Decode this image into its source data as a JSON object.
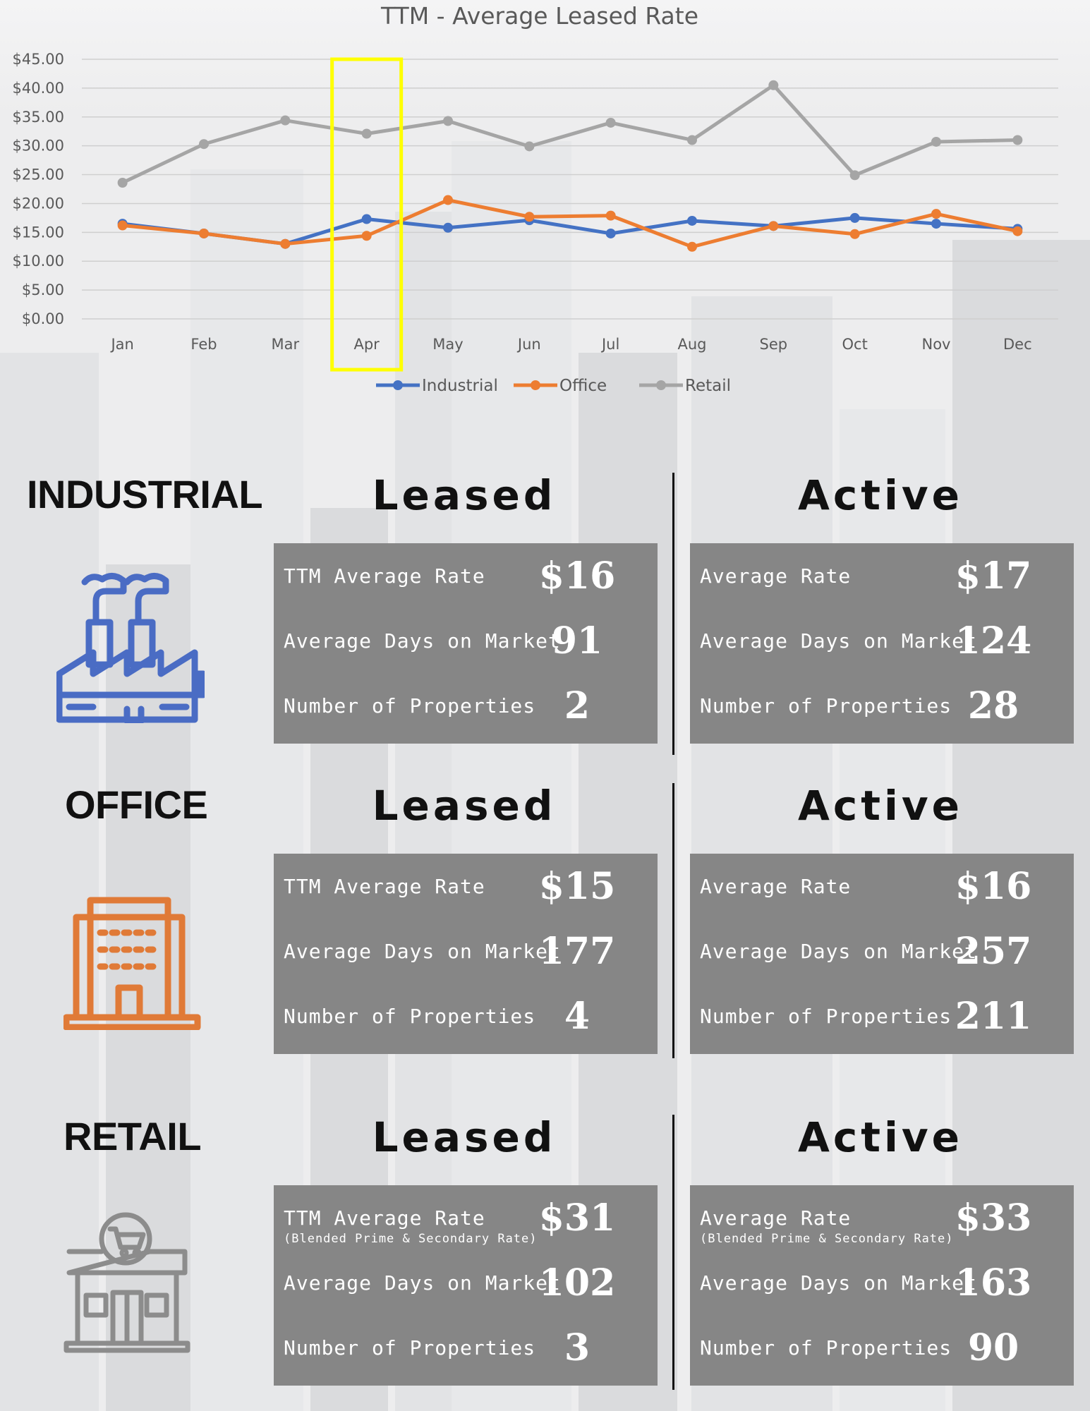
{
  "chart_data": {
    "type": "line",
    "title": "TTM - Average Leased Rate",
    "categories": [
      "Jan",
      "Feb",
      "Mar",
      "Apr",
      "May",
      "Jun",
      "Jul",
      "Aug",
      "Sep",
      "Oct",
      "Nov",
      "Dec"
    ],
    "y_ticks": [
      "$0.00",
      "$5.00",
      "$10.00",
      "$15.00",
      "$20.00",
      "$25.00",
      "$30.00",
      "$35.00",
      "$40.00",
      "$45.00"
    ],
    "ylim": [
      0,
      45
    ],
    "grid": true,
    "legend_position": "bottom",
    "highlight_category": "Apr",
    "series": [
      {
        "name": "Industrial",
        "color": "#4472c4",
        "values": [
          16.5,
          14.8,
          13.0,
          17.3,
          15.8,
          17.1,
          14.8,
          17.0,
          16.1,
          17.5,
          16.5,
          15.6
        ]
      },
      {
        "name": "Office",
        "color": "#ed7d31",
        "values": [
          16.2,
          14.8,
          13.0,
          14.4,
          20.6,
          17.7,
          17.9,
          12.5,
          16.1,
          14.7,
          18.2,
          15.2
        ]
      },
      {
        "name": "Retail",
        "color": "#a5a5a5",
        "values": [
          23.6,
          30.3,
          34.4,
          32.1,
          34.3,
          29.9,
          34.0,
          31.0,
          40.5,
          24.9,
          30.7,
          31.0
        ]
      }
    ]
  },
  "highlight_color": "#ffff00",
  "sections": [
    {
      "title": "INDUSTRIAL",
      "icon": "factory-icon",
      "icon_color": "#4a6cc4",
      "leased": {
        "heading": "Leased",
        "rows": [
          {
            "label": "TTM Average Rate",
            "sublabel": "",
            "value": "$16"
          },
          {
            "label": "Average Days on Market",
            "sublabel": "",
            "value": "91"
          },
          {
            "label": "Number of Properties",
            "sublabel": "",
            "value": "2"
          }
        ]
      },
      "active": {
        "heading": "Active",
        "rows": [
          {
            "label": "Average Rate",
            "sublabel": "",
            "value": "$17"
          },
          {
            "label": "Average Days on Market",
            "sublabel": "",
            "value": "124"
          },
          {
            "label": "Number of Properties",
            "sublabel": "",
            "value": "28"
          }
        ]
      }
    },
    {
      "title": "OFFICE",
      "icon": "office-building-icon",
      "icon_color": "#e07a37",
      "leased": {
        "heading": "Leased",
        "rows": [
          {
            "label": "TTM Average Rate",
            "sublabel": "",
            "value": "$15"
          },
          {
            "label": "Average Days on Market",
            "sublabel": "",
            "value": "177"
          },
          {
            "label": "Number of Properties",
            "sublabel": "",
            "value": "4"
          }
        ]
      },
      "active": {
        "heading": "Active",
        "rows": [
          {
            "label": "Average Rate",
            "sublabel": "",
            "value": "$16"
          },
          {
            "label": "Average Days on Market",
            "sublabel": "",
            "value": "257"
          },
          {
            "label": "Number of Properties",
            "sublabel": "",
            "value": "211"
          }
        ]
      }
    },
    {
      "title": "RETAIL",
      "icon": "retail-store-icon",
      "icon_color": "#8c8c8c",
      "leased": {
        "heading": "Leased",
        "rows": [
          {
            "label": "TTM Average Rate",
            "sublabel": "(Blended Prime & Secondary Rate)",
            "value": "$31"
          },
          {
            "label": "Average Days on Market",
            "sublabel": "",
            "value": "102"
          },
          {
            "label": "Number of Properties",
            "sublabel": "",
            "value": "3"
          }
        ]
      },
      "active": {
        "heading": "Active",
        "rows": [
          {
            "label": "Average Rate",
            "sublabel": "(Blended Prime & Secondary Rate)",
            "value": "$33"
          },
          {
            "label": "Average Days on Market",
            "sublabel": "",
            "value": "163"
          },
          {
            "label": "Number of Properties",
            "sublabel": "",
            "value": "90"
          }
        ]
      }
    }
  ]
}
